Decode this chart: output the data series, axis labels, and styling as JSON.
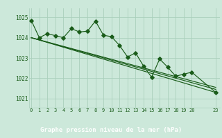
{
  "title": "Graphe pression niveau de la mer (hPa)",
  "background_color": "#cce8da",
  "plot_bg_color": "#cce8da",
  "label_bg_color": "#2d6e2d",
  "grid_color": "#aacfbc",
  "line_color": "#1a5c1a",
  "label_text_color": "#ffffff",
  "tick_color": "#1a5c1a",
  "xlim": [
    -0.3,
    23.5
  ],
  "ylim": [
    1020.55,
    1025.45
  ],
  "yticks": [
    1021,
    1022,
    1023,
    1024,
    1025
  ],
  "xtick_positions": [
    0,
    1,
    2,
    3,
    4,
    5,
    6,
    7,
    8,
    9,
    10,
    11,
    12,
    13,
    14,
    15,
    16,
    17,
    18,
    19,
    20,
    23
  ],
  "xtick_labels": [
    "0",
    "1",
    "2",
    "3",
    "4",
    "5",
    "6",
    "7",
    "8",
    "9",
    "10",
    "11",
    "12",
    "13",
    "14",
    "15",
    "16",
    "17",
    "18",
    "19",
    "20",
    "23"
  ],
  "series1_x": [
    0,
    1,
    2,
    3,
    4,
    5,
    6,
    7,
    8,
    9,
    10,
    11,
    12,
    13,
    14,
    15,
    16,
    17,
    18,
    19,
    20,
    23
  ],
  "series1_y": [
    1024.85,
    1024.0,
    1024.2,
    1024.1,
    1024.0,
    1024.45,
    1024.28,
    1024.32,
    1024.82,
    1024.12,
    1024.05,
    1023.62,
    1023.05,
    1023.25,
    1022.6,
    1022.05,
    1022.95,
    1022.55,
    1022.1,
    1022.2,
    1022.3,
    1021.3
  ],
  "trend1_x": [
    0,
    23
  ],
  "trend1_y": [
    1024.0,
    1021.3
  ],
  "trend2_x": [
    0,
    23
  ],
  "trend2_y": [
    1024.0,
    1021.45
  ],
  "trend3_x": [
    0,
    23
  ],
  "trend3_y": [
    1024.0,
    1021.55
  ]
}
